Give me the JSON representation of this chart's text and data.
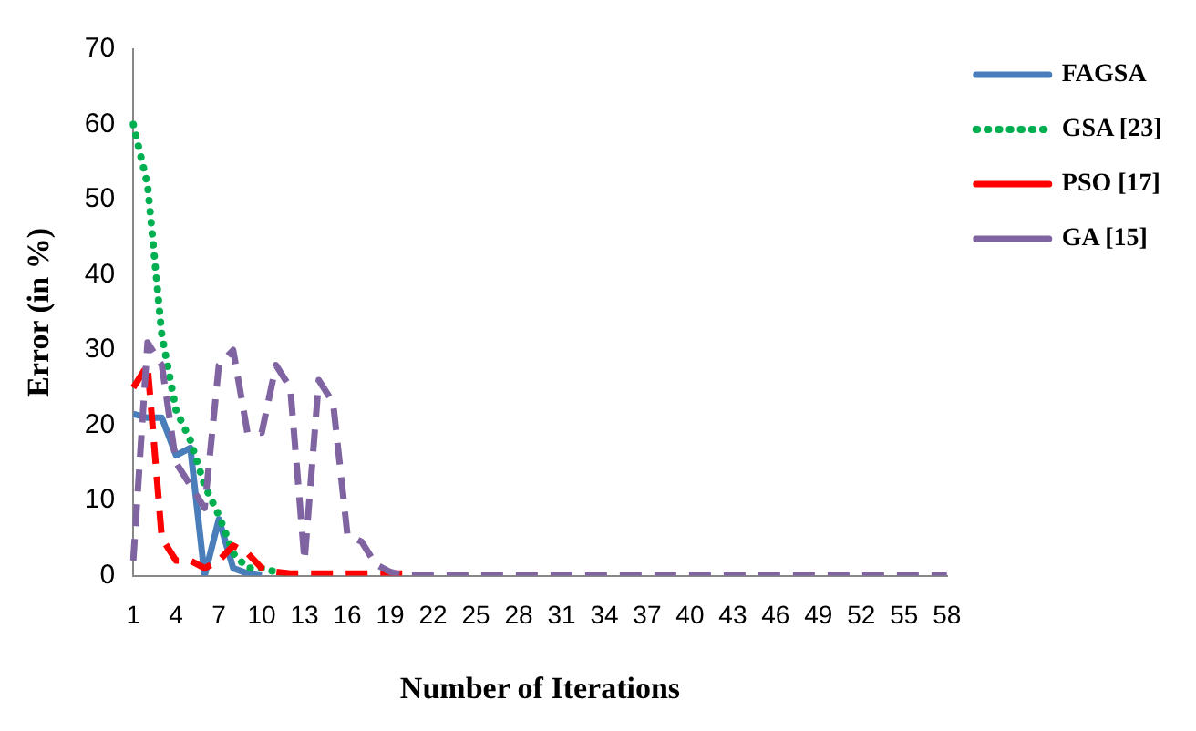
{
  "chart_data": {
    "type": "line",
    "xlabel": "Number of Iterations",
    "ylabel": "Error (in %)",
    "categories": [
      "1",
      null,
      null,
      "4",
      null,
      null,
      "7",
      null,
      null,
      "10",
      null,
      null,
      "13",
      null,
      null,
      "16",
      null,
      null,
      "19",
      null,
      null,
      "22",
      null,
      null,
      "25",
      null,
      null,
      "28",
      null,
      null,
      "31",
      null,
      null,
      "34",
      null,
      null,
      "37",
      null,
      null,
      "40",
      null,
      null,
      "43",
      null,
      null,
      "46",
      null,
      null,
      "49",
      null,
      null,
      "52",
      null,
      null,
      "55",
      null,
      null,
      "58"
    ],
    "series": [
      {
        "name": "FAGSA",
        "color": "#4a7ebb",
        "line_style": "solid",
        "values": [
          21.5,
          21,
          21,
          16,
          17,
          0,
          7.5,
          1,
          0.3,
          0,
          null,
          null,
          null,
          null,
          null,
          null,
          null,
          null,
          null,
          null,
          null,
          null,
          null,
          null,
          null,
          null,
          null,
          null,
          null,
          null,
          null,
          null,
          null,
          null,
          null,
          null,
          null,
          null,
          null,
          null,
          null,
          null,
          null,
          null,
          null,
          null,
          null,
          null,
          null,
          null,
          null,
          null,
          null,
          null,
          null,
          null,
          null,
          null
        ]
      },
      {
        "name": "GSA [23]",
        "color": "#00b050",
        "line_style": "dotted",
        "values": [
          60,
          52,
          32,
          22,
          18,
          12,
          8,
          3,
          1,
          1,
          0.5,
          0,
          null,
          null,
          null,
          null,
          null,
          null,
          null,
          null,
          null,
          null,
          null,
          null,
          null,
          null,
          null,
          null,
          null,
          null,
          null,
          null,
          null,
          null,
          null,
          null,
          null,
          null,
          null,
          null,
          null,
          null,
          null,
          null,
          null,
          null,
          null,
          null,
          null,
          null,
          null,
          null,
          null,
          null,
          null,
          null,
          null,
          null
        ]
      },
      {
        "name": "PSO [17]",
        "color": "#ff0000",
        "line_style": "dashed",
        "values": [
          25,
          28,
          5,
          2,
          2,
          1,
          2,
          4,
          3,
          1,
          0.5,
          0.3,
          0.3,
          0.3,
          0.3,
          0.3,
          0.3,
          0.3,
          0.3,
          0.3,
          null,
          null,
          null,
          null,
          null,
          null,
          null,
          null,
          null,
          null,
          null,
          null,
          null,
          null,
          null,
          null,
          null,
          null,
          null,
          null,
          null,
          null,
          null,
          null,
          null,
          null,
          null,
          null,
          null,
          null,
          null,
          null,
          null,
          null,
          null,
          null,
          null,
          null
        ]
      },
      {
        "name": "GA [15]",
        "color": "#8064a2",
        "line_style": "dashed",
        "values": [
          2,
          31,
          28,
          15,
          12,
          9,
          28,
          30,
          19,
          19,
          28,
          25,
          2,
          26,
          23,
          5.5,
          4.5,
          1.5,
          0.5,
          0,
          0,
          0,
          0,
          0,
          0,
          0,
          0,
          0,
          0,
          0,
          0,
          0,
          0,
          0,
          0,
          0,
          0,
          0,
          0,
          0,
          0,
          0,
          0,
          0,
          0,
          0,
          0,
          0,
          0,
          0,
          0,
          0,
          0,
          0,
          0,
          0,
          0,
          0
        ]
      }
    ],
    "ylim": [
      0,
      70
    ],
    "yticks": [
      0,
      10,
      20,
      30,
      40,
      50,
      60,
      70
    ],
    "grid": false,
    "legend": "right",
    "marker": "none"
  }
}
